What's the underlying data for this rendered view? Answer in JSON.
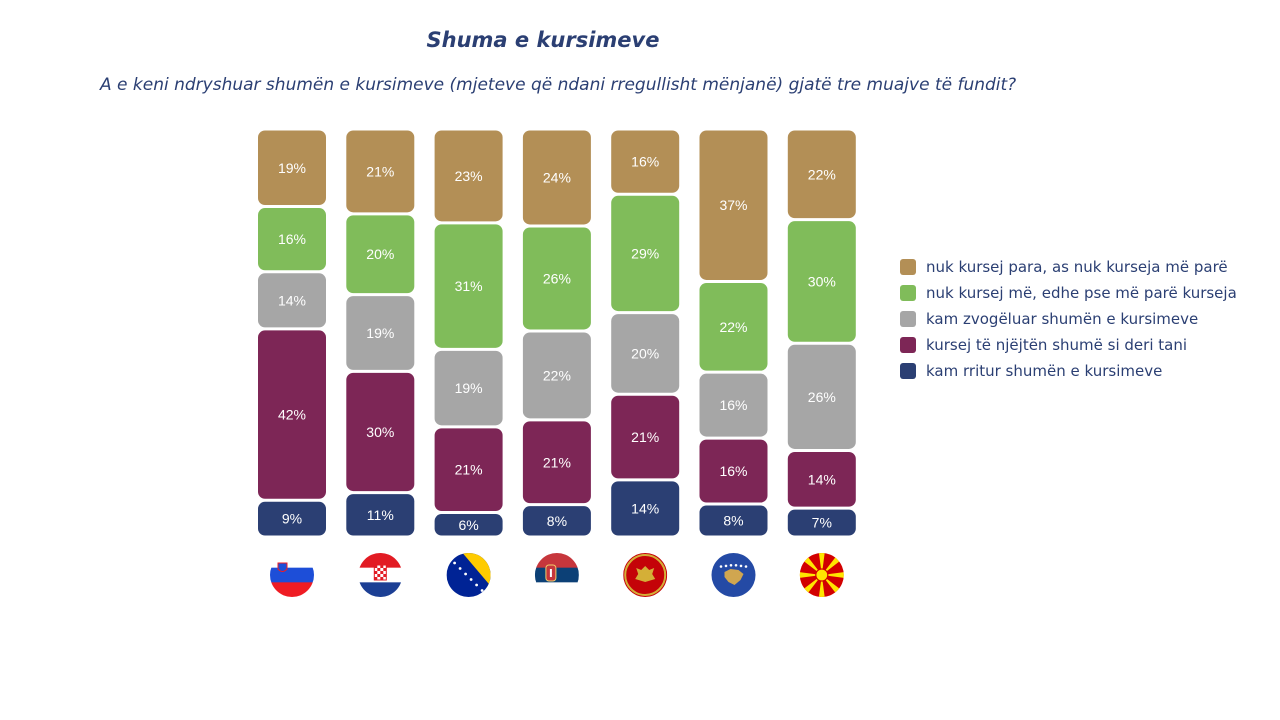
{
  "chart_data": {
    "type": "bar",
    "stacked": true,
    "title": "Shuma e kursimeve",
    "subtitle": "A e keni ndryshuar shumën e kursimeve (mjeteve që ndani rregullisht mënjanë) gjatë tre muajve të fundit?",
    "categories": [
      "Slovenia",
      "Croatia",
      "Bosnia and Herzegovina",
      "Serbia",
      "Montenegro",
      "Kosovo",
      "North Macedonia"
    ],
    "series": [
      {
        "name": "kam rritur shumën e kursimeve",
        "color": "#2b3f73",
        "values": [
          9,
          11,
          6,
          8,
          14,
          8,
          7
        ]
      },
      {
        "name": "kursej të njëjtën shumë si deri tani",
        "color": "#7d2656",
        "values": [
          42,
          30,
          21,
          21,
          21,
          16,
          14
        ]
      },
      {
        "name": "kam zvogëluar shumën e kursimeve",
        "color": "#a6a6a6",
        "values": [
          14,
          19,
          19,
          22,
          20,
          16,
          26
        ]
      },
      {
        "name": "nuk kursej më, edhe pse më parë kurseja",
        "color": "#80bc5a",
        "values": [
          16,
          20,
          31,
          26,
          29,
          22,
          30
        ]
      },
      {
        "name": "nuk kursej para, as nuk kurseja më parë",
        "color": "#b38f56",
        "values": [
          19,
          21,
          23,
          24,
          16,
          37,
          22
        ]
      }
    ],
    "value_suffix": "%",
    "legend_position": "right",
    "grid": false
  },
  "flags": [
    "slovenia-flag-icon",
    "croatia-flag-icon",
    "bosnia-flag-icon",
    "serbia-flag-icon",
    "montenegro-flag-icon",
    "kosovo-flag-icon",
    "macedonia-flag-icon"
  ]
}
